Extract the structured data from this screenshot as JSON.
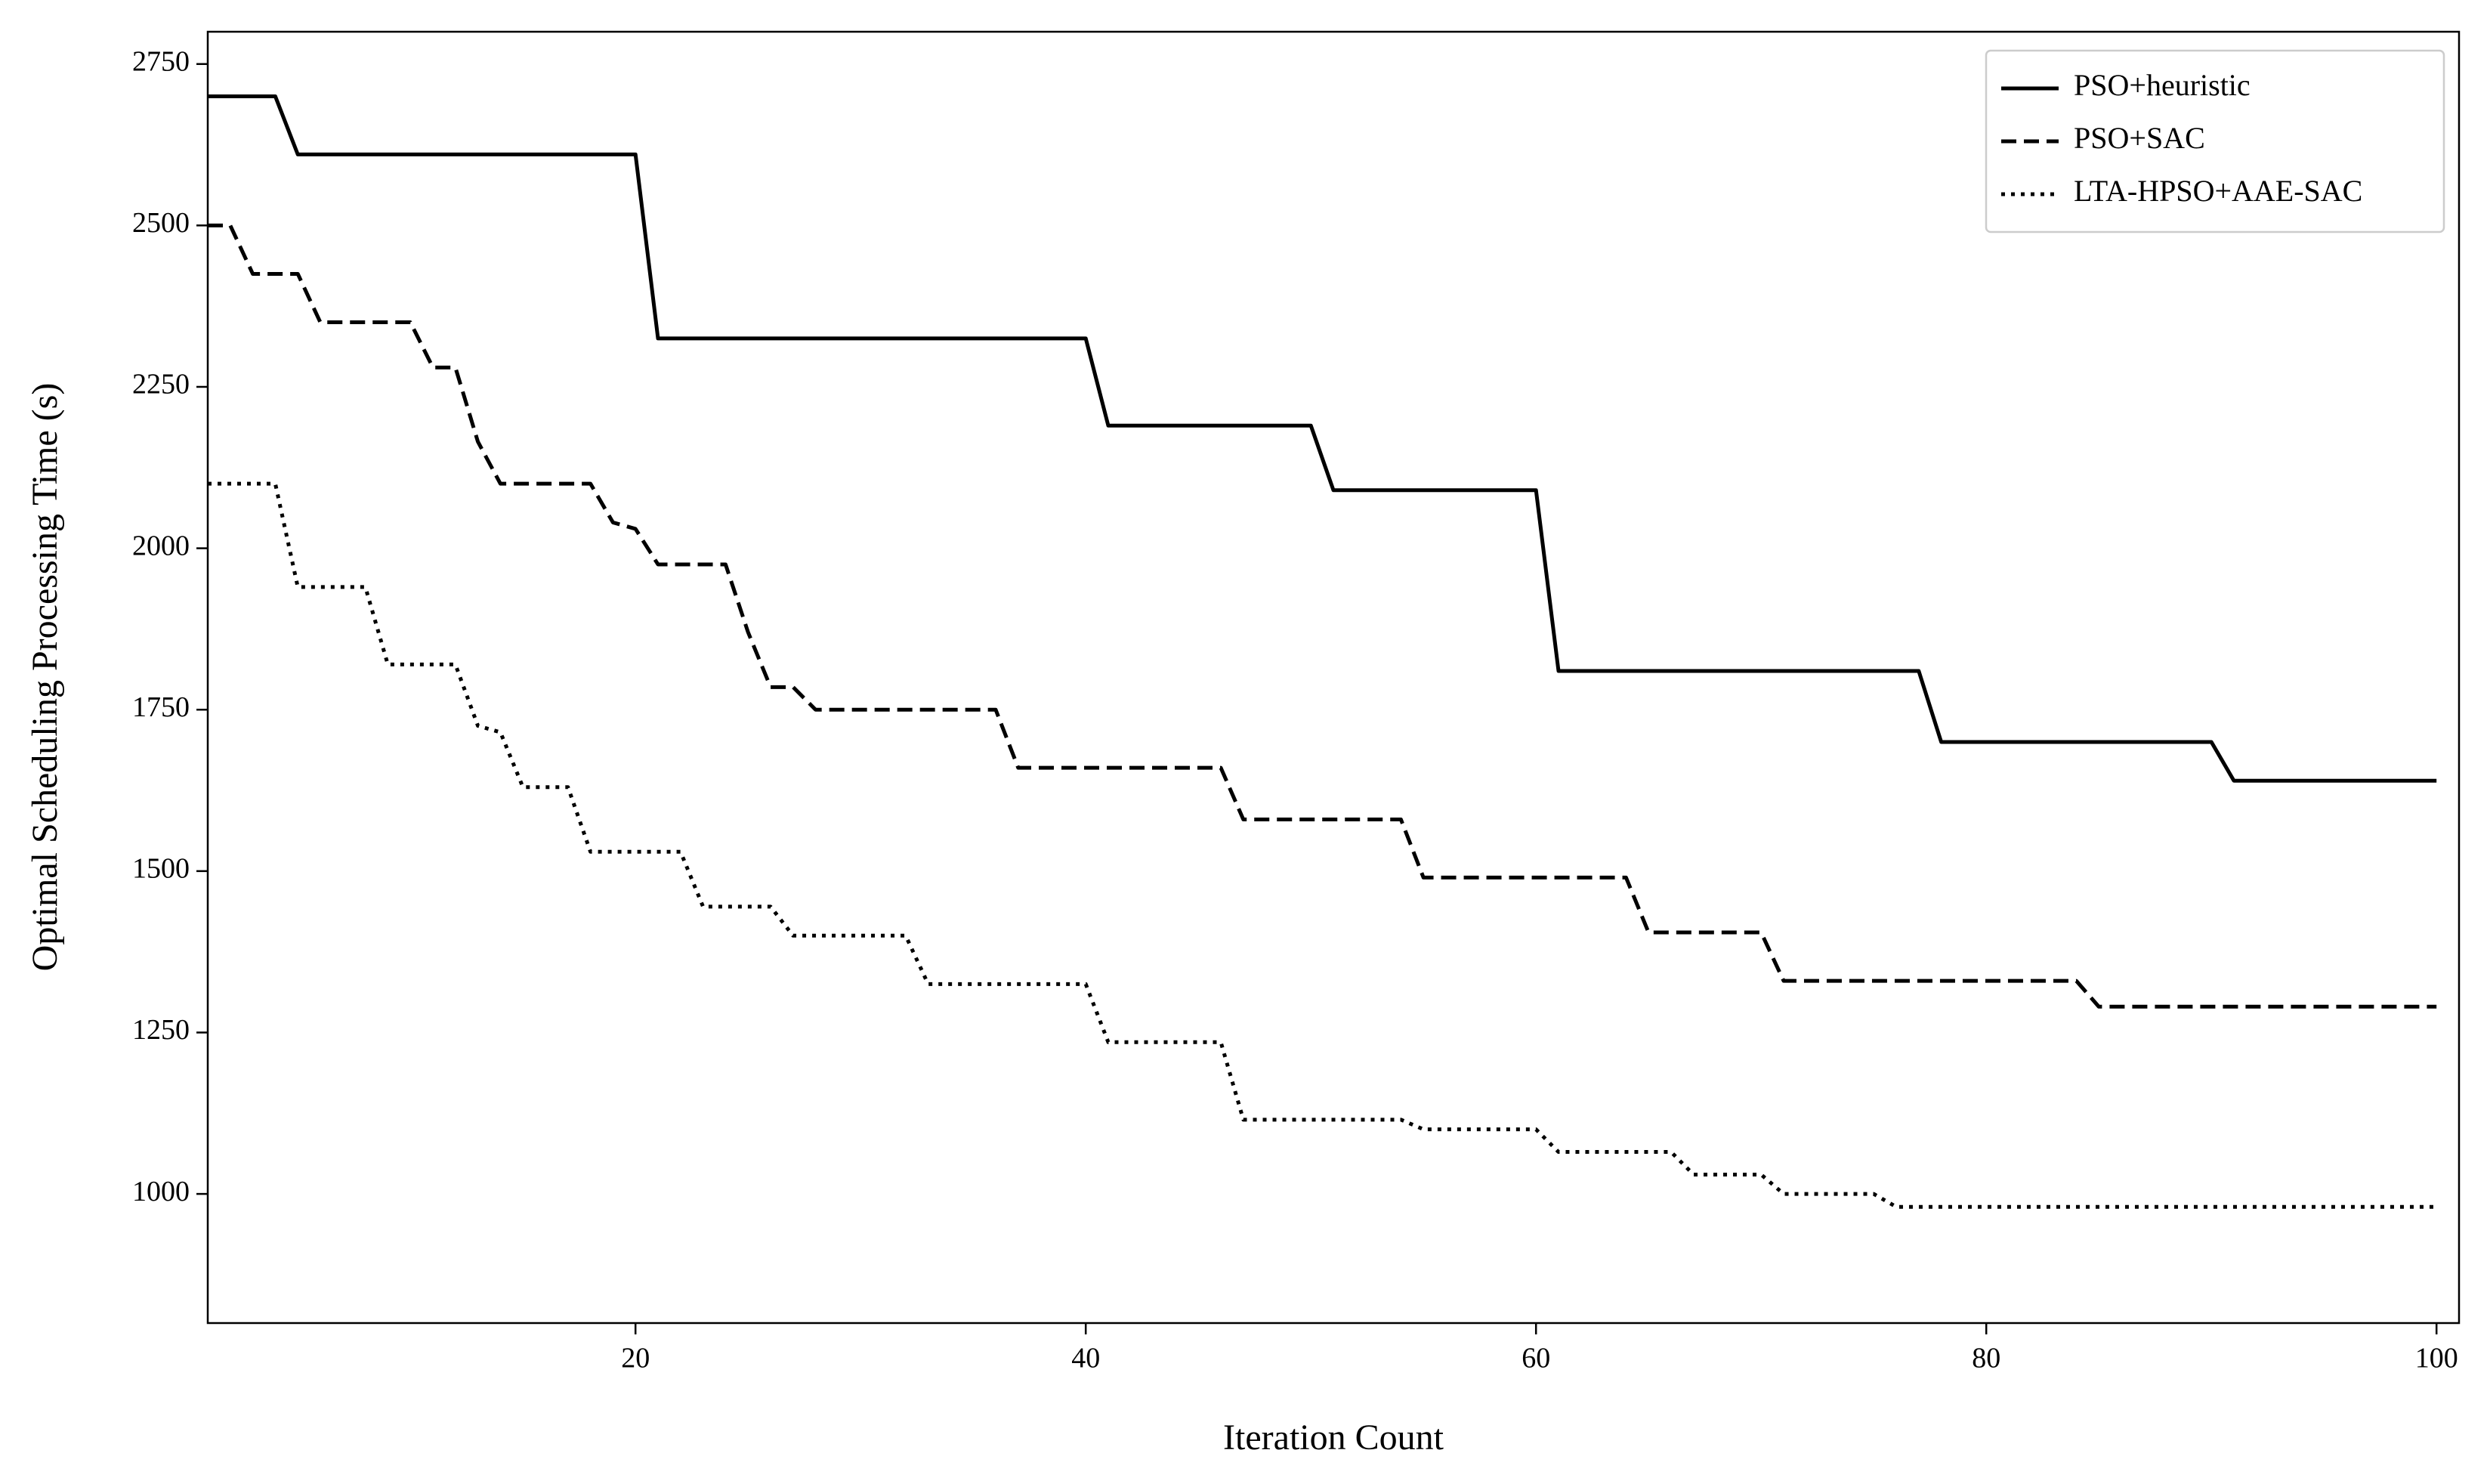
{
  "chart_data": {
    "type": "line",
    "xlabel": "Iteration Count",
    "ylabel": "Optimal Scheduling Processing Time (s)",
    "x": [
      1,
      2,
      3,
      4,
      5,
      6,
      7,
      8,
      9,
      10,
      11,
      12,
      13,
      14,
      15,
      16,
      17,
      18,
      19,
      20,
      21,
      22,
      23,
      24,
      25,
      26,
      27,
      28,
      29,
      30,
      31,
      32,
      33,
      34,
      35,
      36,
      37,
      38,
      39,
      40,
      41,
      42,
      43,
      44,
      45,
      46,
      47,
      48,
      49,
      50,
      51,
      52,
      53,
      54,
      55,
      56,
      57,
      58,
      59,
      60,
      61,
      62,
      63,
      64,
      65,
      66,
      67,
      68,
      69,
      70,
      71,
      72,
      73,
      74,
      75,
      76,
      77,
      78,
      79,
      80,
      81,
      82,
      83,
      84,
      85,
      86,
      87,
      88,
      89,
      90,
      91,
      92,
      93,
      94,
      95,
      96,
      97,
      98,
      99,
      100
    ],
    "series": [
      {
        "name": "PSO+heuristic",
        "color": "#000000",
        "linestyle": "solid",
        "values": [
          2700,
          2700,
          2700,
          2700,
          2610,
          2610,
          2610,
          2610,
          2610,
          2610,
          2610,
          2610,
          2610,
          2610,
          2610,
          2610,
          2610,
          2610,
          2610,
          2610,
          2325,
          2325,
          2325,
          2325,
          2325,
          2325,
          2325,
          2325,
          2325,
          2325,
          2325,
          2325,
          2325,
          2325,
          2325,
          2325,
          2325,
          2325,
          2325,
          2325,
          2190,
          2190,
          2190,
          2190,
          2190,
          2190,
          2190,
          2190,
          2190,
          2190,
          2090,
          2090,
          2090,
          2090,
          2090,
          2090,
          2090,
          2090,
          2090,
          2090,
          1810,
          1810,
          1810,
          1810,
          1810,
          1810,
          1810,
          1810,
          1810,
          1810,
          1810,
          1810,
          1810,
          1810,
          1810,
          1810,
          1810,
          1700,
          1700,
          1700,
          1700,
          1700,
          1700,
          1700,
          1700,
          1700,
          1700,
          1700,
          1700,
          1700,
          1640,
          1640,
          1640,
          1640,
          1640,
          1640,
          1640,
          1640,
          1640,
          1640
        ]
      },
      {
        "name": "PSO+SAC",
        "color": "#000000",
        "linestyle": "dashed",
        "values": [
          2500,
          2500,
          2425,
          2425,
          2425,
          2350,
          2350,
          2350,
          2350,
          2350,
          2280,
          2280,
          2165,
          2100,
          2100,
          2100,
          2100,
          2100,
          2040,
          2030,
          1975,
          1975,
          1975,
          1975,
          1870,
          1785,
          1785,
          1750,
          1750,
          1750,
          1750,
          1750,
          1750,
          1750,
          1750,
          1750,
          1660,
          1660,
          1660,
          1660,
          1660,
          1660,
          1660,
          1660,
          1660,
          1660,
          1580,
          1580,
          1580,
          1580,
          1580,
          1580,
          1580,
          1580,
          1490,
          1490,
          1490,
          1490,
          1490,
          1490,
          1490,
          1490,
          1490,
          1490,
          1405,
          1405,
          1405,
          1405,
          1405,
          1405,
          1330,
          1330,
          1330,
          1330,
          1330,
          1330,
          1330,
          1330,
          1330,
          1330,
          1330,
          1330,
          1330,
          1330,
          1290,
          1290,
          1290,
          1290,
          1290,
          1290,
          1290,
          1290,
          1290,
          1290,
          1290,
          1290,
          1290,
          1290,
          1290,
          1290
        ]
      },
      {
        "name": "LTA-HPSO+AAE-SAC",
        "color": "#000000",
        "linestyle": "dotted",
        "values": [
          2100,
          2100,
          2100,
          2100,
          1940,
          1940,
          1940,
          1940,
          1820,
          1820,
          1820,
          1820,
          1725,
          1715,
          1630,
          1630,
          1630,
          1530,
          1530,
          1530,
          1530,
          1530,
          1445,
          1445,
          1445,
          1445,
          1400,
          1400,
          1400,
          1400,
          1400,
          1400,
          1325,
          1325,
          1325,
          1325,
          1325,
          1325,
          1325,
          1325,
          1235,
          1235,
          1235,
          1235,
          1235,
          1235,
          1115,
          1115,
          1115,
          1115,
          1115,
          1115,
          1115,
          1115,
          1100,
          1100,
          1100,
          1100,
          1100,
          1100,
          1065,
          1065,
          1065,
          1065,
          1065,
          1065,
          1030,
          1030,
          1030,
          1030,
          1000,
          1000,
          1000,
          1000,
          1000,
          980,
          980,
          980,
          980,
          980,
          980,
          980,
          980,
          980,
          980,
          980,
          980,
          980,
          980,
          980,
          980,
          980,
          980,
          980,
          980,
          980,
          980,
          980,
          980,
          980
        ]
      }
    ],
    "xlim": [
      1,
      101
    ],
    "xticks": [
      20,
      40,
      60,
      80,
      100
    ],
    "ylim": [
      800,
      2800
    ],
    "yticks": [
      1000,
      1250,
      1500,
      1750,
      2000,
      2250,
      2500,
      2750
    ],
    "grid": false,
    "legend": "upper right"
  }
}
